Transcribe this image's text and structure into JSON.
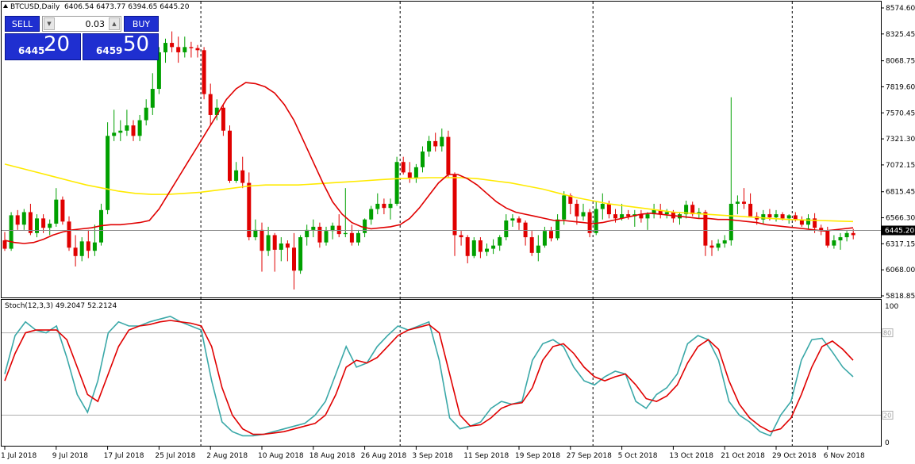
{
  "header": {
    "symbol_timeframe": "BTCUSD,Daily",
    "ohlc": "6406.54 6473.77 6394.65 6445.20"
  },
  "trade_panel": {
    "sell_label": "SELL",
    "buy_label": "BUY",
    "lot_value": "0.03",
    "sell_price_prefix": "6445",
    "sell_price_big": "20",
    "buy_price_prefix": "6459",
    "buy_price_big": "50"
  },
  "price_axis": {
    "labels": [
      "8574.60",
      "8325.45",
      "8068.75",
      "7819.60",
      "7570.45",
      "7321.30",
      "7072.15",
      "6815.45",
      "6566.30",
      "6317.15",
      "6068.00",
      "5818.85"
    ],
    "current_price": "6445.20"
  },
  "indicator": {
    "label": "Stoch(12,3,3) 49.2047 52.2124",
    "axis_labels": [
      "100",
      "80",
      "20",
      "0"
    ],
    "levels": [
      80,
      20
    ]
  },
  "time_axis": {
    "labels": [
      "1 Jul 2018",
      "9 Jul 2018",
      "17 Jul 2018",
      "25 Jul 2018",
      "2 Aug 2018",
      "10 Aug 2018",
      "18 Aug 2018",
      "26 Aug 2018",
      "3 Sep 2018",
      "11 Sep 2018",
      "19 Sep 2018",
      "27 Sep 2018",
      "5 Oct 2018",
      "13 Oct 2018",
      "21 Oct 2018",
      "29 Oct 2018",
      "6 Nov 2018"
    ]
  },
  "colors": {
    "bull": "#00a000",
    "bear": "#e00000",
    "ma_fast": "#e00000",
    "ma_slow": "#ffea00",
    "stoch_main": "#3aa8a8",
    "stoch_signal": "#e00000",
    "level_line": "#b0b0b0",
    "panel_blue": "#1f2fd0"
  },
  "chart_data": {
    "type": "candlestick",
    "start_date": "1 Jul 2018",
    "interval": "1 day",
    "ylim": [
      5818.85,
      8574.6
    ],
    "candles": [
      [
        6350,
        6430,
        6250,
        6270
      ],
      [
        6270,
        6620,
        6250,
        6590
      ],
      [
        6590,
        6640,
        6450,
        6500
      ],
      [
        6500,
        6650,
        6450,
        6620
      ],
      [
        6620,
        6700,
        6400,
        6420
      ],
      [
        6420,
        6600,
        6380,
        6560
      ],
      [
        6560,
        6600,
        6420,
        6470
      ],
      [
        6470,
        6550,
        6400,
        6510
      ],
      [
        6510,
        6850,
        6480,
        6740
      ],
      [
        6740,
        6770,
        6500,
        6530
      ],
      [
        6530,
        6580,
        6250,
        6280
      ],
      [
        6280,
        6400,
        6100,
        6200
      ],
      [
        6200,
        6380,
        6150,
        6340
      ],
      [
        6340,
        6450,
        6180,
        6250
      ],
      [
        6250,
        6500,
        6200,
        6330
      ],
      [
        6330,
        6700,
        6300,
        6640
      ],
      [
        6640,
        7480,
        6600,
        7350
      ],
      [
        7350,
        7600,
        7300,
        7380
      ],
      [
        7380,
        7500,
        7300,
        7400
      ],
      [
        7400,
        7600,
        7350,
        7450
      ],
      [
        7450,
        7500,
        7300,
        7350
      ],
      [
        7350,
        7550,
        7300,
        7500
      ],
      [
        7500,
        7700,
        7450,
        7620
      ],
      [
        7620,
        7950,
        7550,
        7800
      ],
      [
        7800,
        8200,
        7750,
        8150
      ],
      [
        8150,
        8280,
        8050,
        8240
      ],
      [
        8240,
        8350,
        8150,
        8200
      ],
      [
        8200,
        8300,
        8050,
        8150
      ],
      [
        8150,
        8300,
        8100,
        8200
      ],
      [
        8200,
        8250,
        8100,
        8190
      ],
      [
        8190,
        8220,
        8100,
        8170
      ],
      [
        8170,
        8200,
        7700,
        7750
      ],
      [
        7750,
        7850,
        7450,
        7550
      ],
      [
        7550,
        7700,
        7500,
        7620
      ],
      [
        7620,
        7650,
        7350,
        7400
      ],
      [
        7400,
        7450,
        6900,
        6920
      ],
      [
        6920,
        7100,
        6900,
        7020
      ],
      [
        7020,
        7150,
        6850,
        6900
      ],
      [
        6900,
        7000,
        6350,
        6380
      ],
      [
        6380,
        6550,
        6350,
        6450
      ],
      [
        6450,
        6520,
        6050,
        6250
      ],
      [
        6250,
        6480,
        6200,
        6400
      ],
      [
        6400,
        6420,
        6050,
        6260
      ],
      [
        6260,
        6380,
        6150,
        6320
      ],
      [
        6320,
        6350,
        6150,
        6280
      ],
      [
        6280,
        6420,
        5880,
        6060
      ],
      [
        6060,
        6400,
        6030,
        6380
      ],
      [
        6380,
        6500,
        6300,
        6450
      ],
      [
        6450,
        6550,
        6380,
        6480
      ],
      [
        6480,
        6520,
        6280,
        6330
      ],
      [
        6330,
        6480,
        6300,
        6440
      ],
      [
        6440,
        6520,
        6360,
        6490
      ],
      [
        6490,
        6600,
        6380,
        6410
      ],
      [
        6410,
        6850,
        6380,
        6420
      ],
      [
        6420,
        6500,
        6300,
        6330
      ],
      [
        6330,
        6450,
        6300,
        6420
      ],
      [
        6420,
        6560,
        6380,
        6550
      ],
      [
        6550,
        6680,
        6500,
        6650
      ],
      [
        6650,
        6800,
        6600,
        6700
      ],
      [
        6700,
        6750,
        6600,
        6660
      ],
      [
        6660,
        6750,
        6550,
        6700
      ],
      [
        6700,
        7150,
        6680,
        7100
      ],
      [
        7100,
        7150,
        6980,
        7000
      ],
      [
        7000,
        7100,
        6900,
        6950
      ],
      [
        6950,
        7080,
        6900,
        7050
      ],
      [
        7050,
        7250,
        7000,
        7200
      ],
      [
        7200,
        7350,
        7150,
        7300
      ],
      [
        7300,
        7380,
        7200,
        7250
      ],
      [
        7250,
        7420,
        7200,
        7340
      ],
      [
        7340,
        7400,
        6950,
        6980
      ],
      [
        6980,
        7000,
        6200,
        6400
      ],
      [
        6400,
        6440,
        6300,
        6380
      ],
      [
        6380,
        6400,
        6130,
        6200
      ],
      [
        6200,
        6380,
        6180,
        6350
      ],
      [
        6350,
        6380,
        6180,
        6240
      ],
      [
        6240,
        6320,
        6200,
        6270
      ],
      [
        6270,
        6360,
        6220,
        6300
      ],
      [
        6300,
        6400,
        6250,
        6380
      ],
      [
        6380,
        6600,
        6350,
        6540
      ],
      [
        6540,
        6600,
        6480,
        6560
      ],
      [
        6560,
        6580,
        6450,
        6520
      ],
      [
        6520,
        6540,
        6300,
        6380
      ],
      [
        6380,
        6440,
        6200,
        6230
      ],
      [
        6230,
        6400,
        6150,
        6300
      ],
      [
        6300,
        6480,
        6280,
        6440
      ],
      [
        6440,
        6480,
        6340,
        6370
      ],
      [
        6370,
        6600,
        6350,
        6550
      ],
      [
        6550,
        6820,
        6500,
        6780
      ],
      [
        6780,
        6800,
        6600,
        6700
      ],
      [
        6700,
        6740,
        6500,
        6580
      ],
      [
        6580,
        6700,
        6540,
        6620
      ],
      [
        6620,
        6650,
        6380,
        6420
      ],
      [
        6420,
        6720,
        6400,
        6650
      ],
      [
        6650,
        6800,
        6550,
        6700
      ],
      [
        6700,
        6730,
        6560,
        6600
      ],
      [
        6600,
        6650,
        6520,
        6560
      ],
      [
        6560,
        6700,
        6540,
        6600
      ],
      [
        6600,
        6640,
        6550,
        6580
      ],
      [
        6580,
        6640,
        6480,
        6600
      ],
      [
        6600,
        6640,
        6520,
        6560
      ],
      [
        6560,
        6620,
        6450,
        6600
      ],
      [
        6600,
        6700,
        6560,
        6640
      ],
      [
        6640,
        6700,
        6560,
        6600
      ],
      [
        6600,
        6650,
        6560,
        6620
      ],
      [
        6620,
        6640,
        6520,
        6560
      ],
      [
        6560,
        6620,
        6500,
        6600
      ],
      [
        6600,
        6730,
        6560,
        6690
      ],
      [
        6690,
        6720,
        6580,
        6600
      ],
      [
        6600,
        6660,
        6560,
        6620
      ],
      [
        6620,
        6640,
        6200,
        6300
      ],
      [
        6300,
        6350,
        6200,
        6280
      ],
      [
        6280,
        6360,
        6250,
        6320
      ],
      [
        6320,
        6400,
        6280,
        6350
      ],
      [
        6350,
        7720,
        6300,
        6700
      ],
      [
        6700,
        6780,
        6600,
        6720
      ],
      [
        6720,
        6850,
        6650,
        6700
      ],
      [
        6700,
        6800,
        6600,
        6580
      ],
      [
        6580,
        6620,
        6500,
        6550
      ],
      [
        6550,
        6640,
        6500,
        6600
      ],
      [
        6600,
        6650,
        6540,
        6570
      ],
      [
        6570,
        6640,
        6530,
        6600
      ],
      [
        6600,
        6620,
        6540,
        6560
      ],
      [
        6560,
        6600,
        6510,
        6590
      ],
      [
        6590,
        6620,
        6530,
        6550
      ],
      [
        6550,
        6580,
        6480,
        6500
      ],
      [
        6500,
        6600,
        6460,
        6560
      ],
      [
        6560,
        6610,
        6420,
        6470
      ],
      [
        6470,
        6500,
        6400,
        6440
      ],
      [
        6440,
        6480,
        6280,
        6300
      ],
      [
        6300,
        6400,
        6270,
        6350
      ],
      [
        6350,
        6420,
        6260,
        6380
      ],
      [
        6380,
        6440,
        6340,
        6420
      ],
      [
        6420,
        6460,
        6360,
        6400
      ],
      [
        6400,
        6540,
        6380,
        6500
      ],
      [
        6500,
        6540,
        6440,
        6460
      ],
      [
        6460,
        6520,
        6420,
        6500
      ],
      [
        6500,
        6620,
        6460,
        6590
      ],
      [
        6590,
        6640,
        6480,
        6500
      ],
      [
        6500,
        6540,
        6410,
        6420
      ],
      [
        6420,
        6480,
        6380,
        6440
      ],
      [
        6440,
        6480,
        6390,
        6410
      ],
      [
        6406.54,
        6473.77,
        6394.65,
        6445.2
      ]
    ],
    "ma_fast_values": [
      6350,
      6330,
      6320,
      6330,
      6360,
      6400,
      6430,
      6450,
      6460,
      6470,
      6490,
      6500,
      6500,
      6510,
      6520,
      6540,
      6650,
      6800,
      6950,
      7100,
      7250,
      7400,
      7550,
      7700,
      7800,
      7860,
      7850,
      7820,
      7760,
      7650,
      7500,
      7300,
      7100,
      6900,
      6720,
      6600,
      6520,
      6480,
      6460,
      6470,
      6480,
      6500,
      6560,
      6660,
      6780,
      6900,
      6980,
      6980,
      6940,
      6880,
      6800,
      6720,
      6660,
      6620,
      6600,
      6580,
      6560,
      6540,
      6540,
      6530,
      6520,
      6510,
      6520,
      6540,
      6560,
      6580,
      6600,
      6610,
      6600,
      6590,
      6580,
      6570,
      6560,
      6560,
      6550,
      6550,
      6540,
      6530,
      6520,
      6500,
      6490,
      6480,
      6470,
      6460,
      6450,
      6440,
      6450,
      6460,
      6470
    ],
    "ma_slow_values": [
      7080,
      7040,
      7000,
      6960,
      6920,
      6880,
      6850,
      6820,
      6800,
      6790,
      6790,
      6800,
      6810,
      6830,
      6850,
      6870,
      6880,
      6880,
      6880,
      6890,
      6900,
      6910,
      6920,
      6930,
      6940,
      6945,
      6950,
      6950,
      6950,
      6940,
      6920,
      6900,
      6870,
      6840,
      6800,
      6760,
      6730,
      6700,
      6680,
      6660,
      6640,
      6620,
      6610,
      6600,
      6590,
      6580,
      6570,
      6560,
      6550,
      6545,
      6540,
      6535,
      6530
    ],
    "stoch_main": [
      50,
      78,
      88,
      82,
      80,
      85,
      62,
      35,
      22,
      45,
      80,
      88,
      85,
      85,
      88,
      90,
      92,
      88,
      85,
      82,
      45,
      15,
      8,
      5,
      5,
      6,
      8,
      10,
      12,
      14,
      20,
      30,
      50,
      70,
      55,
      58,
      70,
      78,
      85,
      82,
      85,
      88,
      60,
      18,
      10,
      12,
      15,
      25,
      30,
      28,
      30,
      60,
      72,
      75,
      70,
      55,
      45,
      42,
      48,
      52,
      50,
      30,
      25,
      35,
      40,
      50,
      72,
      78,
      75,
      60,
      30,
      20,
      15,
      8,
      5,
      20,
      30,
      60,
      75,
      76,
      66,
      55,
      48
    ],
    "stoch_signal": [
      45,
      65,
      80,
      82,
      82,
      82,
      75,
      55,
      35,
      30,
      50,
      70,
      82,
      85,
      86,
      88,
      89,
      88,
      87,
      85,
      70,
      40,
      20,
      10,
      6,
      6,
      7,
      8,
      10,
      12,
      14,
      20,
      35,
      55,
      60,
      58,
      62,
      70,
      78,
      82,
      84,
      86,
      80,
      50,
      20,
      12,
      13,
      18,
      25,
      28,
      29,
      40,
      60,
      70,
      72,
      65,
      55,
      48,
      45,
      48,
      50,
      42,
      32,
      30,
      34,
      42,
      58,
      70,
      75,
      68,
      45,
      28,
      18,
      12,
      8,
      10,
      18,
      35,
      55,
      70,
      74,
      68,
      60
    ]
  }
}
